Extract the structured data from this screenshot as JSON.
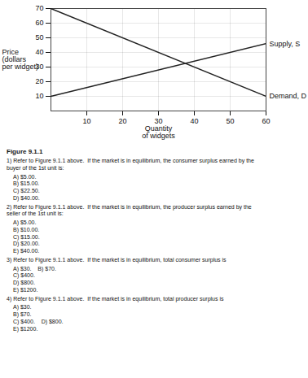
{
  "chart_data": {
    "type": "line",
    "title": "Figure 9.1.1",
    "xlabel": "Quantity\nof widgets",
    "ylabel": "Price\n(dollars\nper widget)",
    "xlim": [
      0,
      60
    ],
    "ylim": [
      0,
      70
    ],
    "xticks": [
      10,
      20,
      30,
      40,
      50,
      60
    ],
    "yticks": [
      10,
      20,
      30,
      40,
      50,
      60,
      70
    ],
    "grid": true,
    "x": [
      0,
      60
    ],
    "series": [
      {
        "name": "Demand, D",
        "color": "#222222",
        "values": [
          70,
          10
        ]
      },
      {
        "name": "Supply, S",
        "color": "#222222",
        "values": [
          10,
          46
        ]
      }
    ],
    "annotations": [
      "1) Refer to Figure 9.1.1 above.  If the market is in equilibrium, the consumer surplus earned by the\nbuyer of the 1st unit is:",
      "A) $5.00.\nB) $15.00.\nC) $22.50.\nD) $40.00.",
      "2) Refer to Figure 9.1.1 above.  If the market is in equilibrium, the producer surplus earned by the\nseller of the 1st unit is:",
      "A) $5.00.\nB) $10.00.\nC) $15.00.\nD) $20.00.\nE) $40.00.",
      "3) Refer to Figure 9.1.1 above.  If the market is in equilibrium, total consumer surplus is",
      "A) $30.    B) $70.\nC) $400.\nD) $800.\nE) $1200.",
      "4) Refer to Figure 9.1.1 above.  If the market is in equilibrium, total producer surplus is",
      "A) $30.\nB) $70.\nC) $400.    D) $800.\nE) $1200."
    ]
  }
}
